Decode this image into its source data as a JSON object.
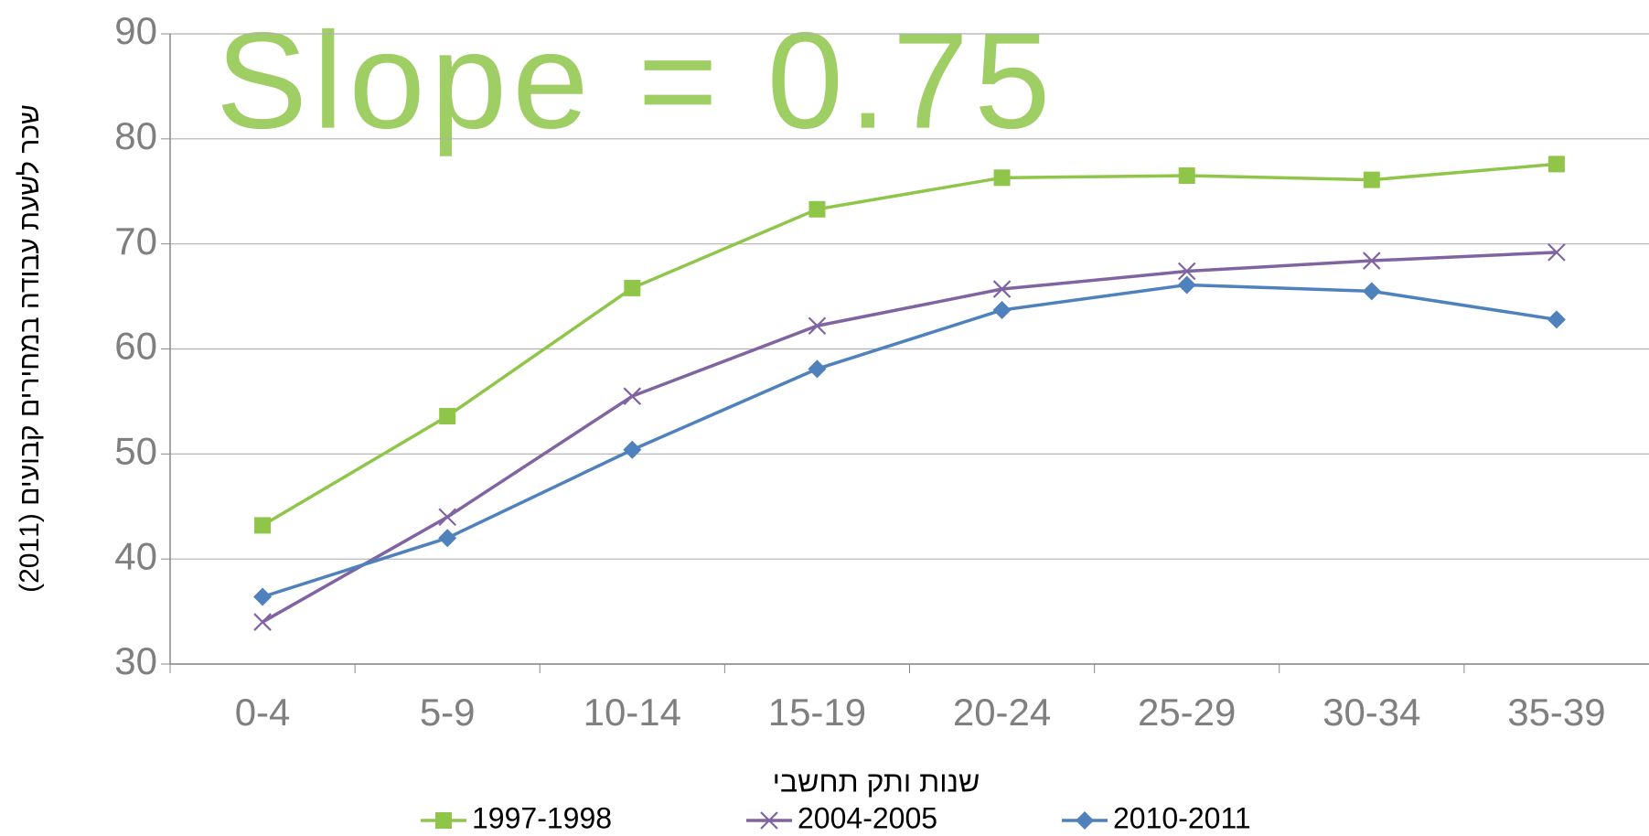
{
  "chart_data": {
    "type": "line",
    "annotation": "Slope =  0.75",
    "ylabel": "שכר לשעת עבודה במחירים קבועים (2011)",
    "xlabel": "שנות ותק תחשבי",
    "categories": [
      "0-4",
      "5-9",
      "10-14",
      "15-19",
      "20-24",
      "25-29",
      "30-34",
      "35-39"
    ],
    "series": [
      {
        "name": "1997-1998",
        "color": "#8fc64a",
        "marker": "square",
        "values": [
          43.2,
          53.6,
          65.8,
          73.3,
          76.3,
          76.5,
          76.1,
          77.6
        ]
      },
      {
        "name": "2004-2005",
        "color": "#8064a2",
        "marker": "x",
        "values": [
          34.0,
          44.0,
          55.5,
          62.2,
          65.7,
          67.4,
          68.4,
          69.2
        ]
      },
      {
        "name": "2010-2011",
        "color": "#4f81bd",
        "marker": "diamond",
        "values": [
          36.4,
          42.0,
          50.4,
          58.1,
          63.7,
          66.1,
          65.5,
          62.8
        ]
      }
    ],
    "ylim": [
      30,
      90
    ],
    "yticks": [
      30,
      40,
      50,
      60,
      70,
      80,
      90
    ],
    "grid": true,
    "legend": "bottom"
  }
}
